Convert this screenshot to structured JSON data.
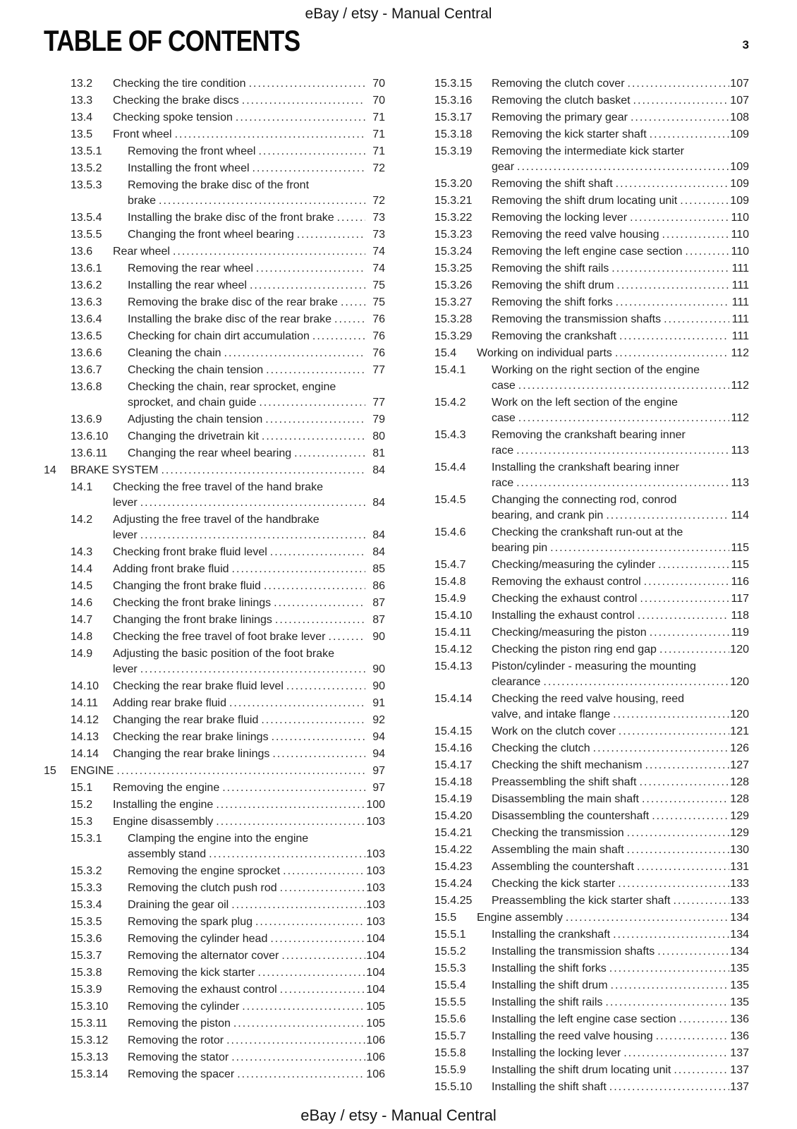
{
  "header": {
    "text": "eBay / etsy - Manual Central"
  },
  "footer": {
    "text": "eBay / etsy - Manual Central"
  },
  "page": {
    "title": "TABLE OF CONTENTS",
    "number": "3"
  },
  "toc": {
    "left": [
      {
        "num": "13.2",
        "title": "Checking the tire condition",
        "page": "70"
      },
      {
        "num": "13.3",
        "title": "Checking the brake discs",
        "page": "70"
      },
      {
        "num": "13.4",
        "title": "Checking spoke tension",
        "page": "71"
      },
      {
        "num": "13.5",
        "title": "Front wheel",
        "page": "71"
      },
      {
        "num": "13.5.1",
        "title": "Removing the front wheel",
        "page": "71"
      },
      {
        "num": "13.5.2",
        "title": "Installing the front wheel",
        "page": "72"
      },
      {
        "num": "13.5.3",
        "title": "Removing the brake disc of the front\nbrake",
        "page": "72"
      },
      {
        "num": "13.5.4",
        "title": "Installing the brake disc of the front brake",
        "page": "73"
      },
      {
        "num": "13.5.5",
        "title": "Changing the front wheel bearing",
        "page": "73"
      },
      {
        "num": "13.6",
        "title": "Rear wheel",
        "page": "74"
      },
      {
        "num": "13.6.1",
        "title": "Removing the rear wheel",
        "page": "74"
      },
      {
        "num": "13.6.2",
        "title": "Installing the rear wheel",
        "page": "75"
      },
      {
        "num": "13.6.3",
        "title": "Removing the brake disc of the rear brake",
        "page": "75"
      },
      {
        "num": "13.6.4",
        "title": "Installing the brake disc of the rear brake",
        "page": "76"
      },
      {
        "num": "13.6.5",
        "title": "Checking for chain dirt accumulation",
        "page": "76"
      },
      {
        "num": "13.6.6",
        "title": "Cleaning the chain",
        "page": "76"
      },
      {
        "num": "13.6.7",
        "title": "Checking the chain tension",
        "page": "77"
      },
      {
        "num": "13.6.8",
        "title": "Checking the chain, rear sprocket, engine\nsprocket, and chain guide",
        "page": "77"
      },
      {
        "num": "13.6.9",
        "title": "Adjusting the chain tension",
        "page": "79"
      },
      {
        "num": "13.6.10",
        "title": "Changing the drivetrain kit",
        "page": "80"
      },
      {
        "num": "13.6.11",
        "title": "Changing the rear wheel bearing",
        "page": "81"
      },
      {
        "num": "14",
        "title": "BRAKE SYSTEM",
        "page": "84"
      },
      {
        "num": "14.1",
        "title": "Checking the free travel of the hand brake\nlever",
        "page": "84"
      },
      {
        "num": "14.2",
        "title": "Adjusting the free travel of the handbrake\nlever",
        "page": "84"
      },
      {
        "num": "14.3",
        "title": "Checking front brake fluid level",
        "page": "84"
      },
      {
        "num": "14.4",
        "title": "Adding front brake fluid",
        "page": "85"
      },
      {
        "num": "14.5",
        "title": "Changing the front brake fluid",
        "page": "86"
      },
      {
        "num": "14.6",
        "title": "Checking the front brake linings",
        "page": "87"
      },
      {
        "num": "14.7",
        "title": "Changing the front brake linings",
        "page": "87"
      },
      {
        "num": "14.8",
        "title": "Checking the free travel of foot brake lever",
        "page": "90"
      },
      {
        "num": "14.9",
        "title": "Adjusting the basic position of the foot brake\nlever",
        "page": "90"
      },
      {
        "num": "14.10",
        "title": "Checking the rear brake fluid level",
        "page": "90"
      },
      {
        "num": "14.11",
        "title": "Adding rear brake fluid",
        "page": "91"
      },
      {
        "num": "14.12",
        "title": "Changing the rear brake fluid",
        "page": "92"
      },
      {
        "num": "14.13",
        "title": "Checking the rear brake linings",
        "page": "94"
      },
      {
        "num": "14.14",
        "title": "Changing the rear brake linings",
        "page": "94"
      },
      {
        "num": "15",
        "title": "ENGINE",
        "page": "97"
      },
      {
        "num": "15.1",
        "title": "Removing the engine",
        "page": "97"
      },
      {
        "num": "15.2",
        "title": "Installing the engine",
        "page": "100"
      },
      {
        "num": "15.3",
        "title": "Engine disassembly",
        "page": "103"
      },
      {
        "num": "15.3.1",
        "title": "Clamping the engine into the engine\nassembly stand",
        "page": "103"
      },
      {
        "num": "15.3.2",
        "title": "Removing the engine sprocket",
        "page": "103"
      },
      {
        "num": "15.3.3",
        "title": "Removing the clutch push rod",
        "page": "103"
      },
      {
        "num": "15.3.4",
        "title": "Draining the gear oil",
        "page": "103"
      },
      {
        "num": "15.3.5",
        "title": "Removing the spark plug",
        "page": "103"
      },
      {
        "num": "15.3.6",
        "title": "Removing the cylinder head",
        "page": "104"
      },
      {
        "num": "15.3.7",
        "title": "Removing the alternator cover",
        "page": "104"
      },
      {
        "num": "15.3.8",
        "title": "Removing the kick starter",
        "page": "104"
      },
      {
        "num": "15.3.9",
        "title": "Removing the exhaust control",
        "page": "104"
      },
      {
        "num": "15.3.10",
        "title": "Removing the cylinder",
        "page": "105"
      },
      {
        "num": "15.3.11",
        "title": "Removing the piston",
        "page": "105"
      },
      {
        "num": "15.3.12",
        "title": "Removing the rotor",
        "page": "106"
      },
      {
        "num": "15.3.13",
        "title": "Removing the stator",
        "page": "106"
      },
      {
        "num": "15.3.14",
        "title": "Removing the spacer",
        "page": "106"
      }
    ],
    "right": [
      {
        "num": "15.3.15",
        "title": "Removing the clutch cover",
        "page": "107"
      },
      {
        "num": "15.3.16",
        "title": "Removing the clutch basket",
        "page": "107"
      },
      {
        "num": "15.3.17",
        "title": "Removing the primary gear",
        "page": "108"
      },
      {
        "num": "15.3.18",
        "title": "Removing the kick starter shaft",
        "page": "109"
      },
      {
        "num": "15.3.19",
        "title": "Removing the intermediate kick starter\ngear",
        "page": "109"
      },
      {
        "num": "15.3.20",
        "title": "Removing the shift shaft",
        "page": "109"
      },
      {
        "num": "15.3.21",
        "title": "Removing the shift drum locating unit",
        "page": "109"
      },
      {
        "num": "15.3.22",
        "title": "Removing the locking lever",
        "page": "110"
      },
      {
        "num": "15.3.23",
        "title": "Removing the reed valve housing",
        "page": "110"
      },
      {
        "num": "15.3.24",
        "title": "Removing the left engine case section",
        "page": "110"
      },
      {
        "num": "15.3.25",
        "title": "Removing the shift rails",
        "page": "111"
      },
      {
        "num": "15.3.26",
        "title": "Removing the shift drum",
        "page": "111"
      },
      {
        "num": "15.3.27",
        "title": "Removing the shift forks",
        "page": "111"
      },
      {
        "num": "15.3.28",
        "title": "Removing the transmission shafts",
        "page": "111"
      },
      {
        "num": "15.3.29",
        "title": "Removing the crankshaft",
        "page": "111"
      },
      {
        "num": "15.4",
        "title": "Working on individual parts",
        "page": "112"
      },
      {
        "num": "15.4.1",
        "title": "Working on the right section of the engine\ncase",
        "page": "112"
      },
      {
        "num": "15.4.2",
        "title": "Work on the left section of the engine\ncase",
        "page": "112"
      },
      {
        "num": "15.4.3",
        "title": "Removing the crankshaft bearing inner\nrace",
        "page": "113"
      },
      {
        "num": "15.4.4",
        "title": "Installing the crankshaft bearing inner\nrace",
        "page": "113"
      },
      {
        "num": "15.4.5",
        "title": "Changing the connecting rod, conrod\nbearing, and crank pin",
        "page": "114"
      },
      {
        "num": "15.4.6",
        "title": "Checking the crankshaft run-out at the\nbearing pin",
        "page": "115"
      },
      {
        "num": "15.4.7",
        "title": "Checking/measuring the cylinder",
        "page": "115"
      },
      {
        "num": "15.4.8",
        "title": "Removing the exhaust control",
        "page": "116"
      },
      {
        "num": "15.4.9",
        "title": "Checking the exhaust control",
        "page": "117"
      },
      {
        "num": "15.4.10",
        "title": "Installing the exhaust control",
        "page": "118"
      },
      {
        "num": "15.4.11",
        "title": "Checking/measuring the piston",
        "page": "119"
      },
      {
        "num": "15.4.12",
        "title": "Checking the piston ring end gap",
        "page": "120"
      },
      {
        "num": "15.4.13",
        "title": "Piston/cylinder - measuring the mounting\nclearance",
        "page": "120"
      },
      {
        "num": "15.4.14",
        "title": "Checking the reed valve housing, reed\nvalve, and intake flange",
        "page": "120"
      },
      {
        "num": "15.4.15",
        "title": "Work on the clutch cover",
        "page": "121"
      },
      {
        "num": "15.4.16",
        "title": "Checking the clutch",
        "page": "126"
      },
      {
        "num": "15.4.17",
        "title": "Checking the shift mechanism",
        "page": "127"
      },
      {
        "num": "15.4.18",
        "title": "Preassembling the shift shaft",
        "page": "128"
      },
      {
        "num": "15.4.19",
        "title": "Disassembling the main shaft",
        "page": "128"
      },
      {
        "num": "15.4.20",
        "title": "Disassembling the countershaft",
        "page": "129"
      },
      {
        "num": "15.4.21",
        "title": "Checking the transmission",
        "page": "129"
      },
      {
        "num": "15.4.22",
        "title": "Assembling the main shaft",
        "page": "130"
      },
      {
        "num": "15.4.23",
        "title": "Assembling the countershaft",
        "page": "131"
      },
      {
        "num": "15.4.24",
        "title": "Checking the kick starter",
        "page": "133"
      },
      {
        "num": "15.4.25",
        "title": "Preassembling the kick starter shaft",
        "page": "133"
      },
      {
        "num": "15.5",
        "title": "Engine assembly",
        "page": "134"
      },
      {
        "num": "15.5.1",
        "title": "Installing the crankshaft",
        "page": "134"
      },
      {
        "num": "15.5.2",
        "title": "Installing the transmission shafts",
        "page": "134"
      },
      {
        "num": "15.5.3",
        "title": "Installing the shift forks",
        "page": "135"
      },
      {
        "num": "15.5.4",
        "title": "Installing the shift drum",
        "page": "135"
      },
      {
        "num": "15.5.5",
        "title": "Installing the shift rails",
        "page": "135"
      },
      {
        "num": "15.5.6",
        "title": "Installing the left engine case section",
        "page": "136"
      },
      {
        "num": "15.5.7",
        "title": "Installing the reed valve housing",
        "page": "136"
      },
      {
        "num": "15.5.8",
        "title": "Installing the locking lever",
        "page": "137"
      },
      {
        "num": "15.5.9",
        "title": "Installing the shift drum locating unit",
        "page": "137"
      },
      {
        "num": "15.5.10",
        "title": "Installing the shift shaft",
        "page": "137"
      }
    ]
  }
}
